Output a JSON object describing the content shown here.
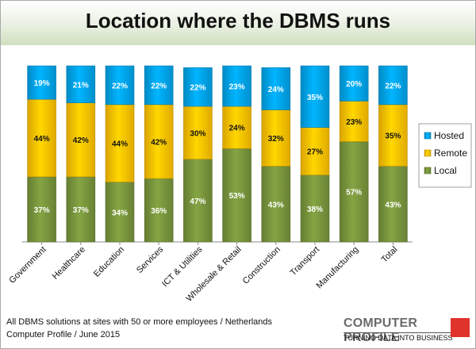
{
  "chart_data": {
    "type": "bar",
    "stacked": true,
    "title": "Location where the DBMS runs",
    "categories": [
      "Government",
      "Healthcare",
      "Education",
      "Services",
      "ICT & Utilities",
      "Wholesale & Retail",
      "Construction",
      "Transport",
      "Manufacturing",
      "Total"
    ],
    "series": [
      {
        "name": "Local",
        "color": "#77933c",
        "values": [
          37,
          37,
          34,
          36,
          47,
          53,
          43,
          38,
          57,
          43
        ],
        "labels": [
          "37%",
          "37%",
          "34%",
          "36%",
          "47%",
          "53%",
          "43%",
          "38%",
          "57%",
          "43%"
        ]
      },
      {
        "name": "Remote",
        "color": "#ffc000",
        "values": [
          44,
          42,
          44,
          42,
          30,
          24,
          32,
          27,
          23,
          35
        ],
        "labels": [
          "44%",
          "42%",
          "44%",
          "42%",
          "30%",
          "24%",
          "32%",
          "27%",
          "23%",
          "35%"
        ]
      },
      {
        "name": "Hosted",
        "color": "#00a2e8",
        "values": [
          19,
          21,
          22,
          22,
          22,
          23,
          24,
          35,
          20,
          22
        ],
        "labels": [
          "19%",
          "21%",
          "22%",
          "22%",
          "22%",
          "23%",
          "24%",
          "35%",
          "20%",
          "22%"
        ]
      }
    ],
    "ylim": [
      0,
      100
    ],
    "grid": false,
    "legend": "right",
    "legend_order": [
      "Hosted",
      "Remote",
      "Local"
    ]
  },
  "footnote": {
    "line1": "All DBMS solutions at sites with 50 or more employees / Netherlands",
    "line2": "Computer Profile / June 2015"
  },
  "logo": {
    "name": "COMPUTER PROFILE",
    "tagline": "TURNING DATA INTO BUSINESS",
    "mark_color": "#e0332c"
  }
}
